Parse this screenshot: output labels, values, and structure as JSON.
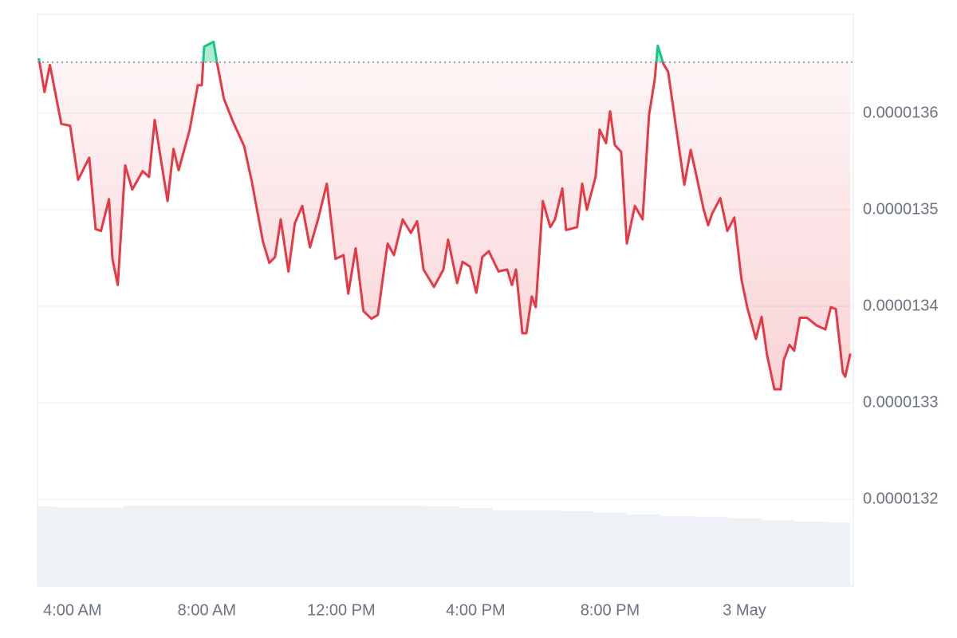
{
  "chart_data": {
    "type": "line",
    "x": [
      3.0,
      3.17,
      3.33,
      3.67,
      3.93,
      4.17,
      4.5,
      4.69,
      4.85,
      5.09,
      5.19,
      5.35,
      5.57,
      5.78,
      6.09,
      6.28,
      6.45,
      6.66,
      6.83,
      7.01,
      7.16,
      7.49,
      7.73,
      7.85,
      7.92,
      8.2,
      8.3,
      8.51,
      8.77,
      9.11,
      9.34,
      9.67,
      9.86,
      10.03,
      10.2,
      10.43,
      10.62,
      10.84,
      11.07,
      11.31,
      11.57,
      11.83,
      12.07,
      12.21,
      12.43,
      12.66,
      12.9,
      13.09,
      13.38,
      13.57,
      13.83,
      14.07,
      14.26,
      14.45,
      14.76,
      15.04,
      15.18,
      15.45,
      15.61,
      15.83,
      16.02,
      16.2,
      16.39,
      16.68,
      16.94,
      17.08,
      17.2,
      17.39,
      17.51,
      17.67,
      17.79,
      18.0,
      18.22,
      18.36,
      18.58,
      18.69,
      19.02,
      19.17,
      19.31,
      19.57,
      19.69,
      19.88,
      20.0,
      20.14,
      20.33,
      20.5,
      20.74,
      20.97,
      21.16,
      21.33,
      21.42,
      21.59,
      21.73,
      21.95,
      22.21,
      22.4,
      22.54,
      22.78,
      22.92,
      23.04,
      23.28,
      23.49,
      23.7,
      23.91,
      24.08,
      24.34,
      24.51,
      24.67,
      24.89,
      25.08,
      25.17,
      25.34,
      25.48,
      25.65,
      25.86,
      26.15,
      26.41,
      26.57,
      26.72,
      26.93,
      27.0,
      27.15
    ],
    "series": [
      {
        "color": "#e63946",
        "values": [
          1.3657e-05,
          1.3622e-05,
          1.365e-05,
          1.3589e-05,
          1.3587e-05,
          1.3531e-05,
          1.3554e-05,
          1.348e-05,
          1.3478e-05,
          1.3511e-05,
          1.3449e-05,
          1.3422e-05,
          1.3546e-05,
          1.3521e-05,
          1.354e-05,
          1.3534e-05,
          1.3593e-05,
          1.3546e-05,
          1.3509e-05,
          1.3563e-05,
          1.3541e-05,
          1.3583e-05,
          1.3629e-05,
          1.3629e-05,
          1.3669e-05,
          1.3674e-05,
          1.3653e-05,
          1.3615e-05,
          1.3592e-05,
          1.3566e-05,
          1.3529e-05,
          1.3467e-05,
          1.3445e-05,
          1.3451e-05,
          1.349e-05,
          1.3436e-05,
          1.3486e-05,
          1.3504e-05,
          1.3461e-05,
          1.349e-05,
          1.3527e-05,
          1.3449e-05,
          1.3453e-05,
          1.3413e-05,
          1.346e-05,
          1.3395e-05,
          1.3387e-05,
          1.3391e-05,
          1.3465e-05,
          1.3453e-05,
          1.349e-05,
          1.3476e-05,
          1.3488e-05,
          1.3438e-05,
          1.342e-05,
          1.3438e-05,
          1.3469e-05,
          1.3424e-05,
          1.3446e-05,
          1.3441e-05,
          1.3414e-05,
          1.3451e-05,
          1.3457e-05,
          1.3436e-05,
          1.3438e-05,
          1.3422e-05,
          1.3438e-05,
          1.3372e-05,
          1.3372e-05,
          1.341e-05,
          1.3399e-05,
          1.3509e-05,
          1.3482e-05,
          1.349e-05,
          1.3522e-05,
          1.3479e-05,
          1.3482e-05,
          1.3527e-05,
          1.35e-05,
          1.3534e-05,
          1.3583e-05,
          1.3569e-05,
          1.3602e-05,
          1.3567e-05,
          1.356e-05,
          1.3465e-05,
          1.3504e-05,
          1.349e-05,
          1.3598e-05,
          1.3635e-05,
          1.367e-05,
          1.3651e-05,
          1.3643e-05,
          1.3589e-05,
          1.3526e-05,
          1.3562e-05,
          1.354e-05,
          1.3501e-05,
          1.3484e-05,
          1.3496e-05,
          1.3512e-05,
          1.3478e-05,
          1.3492e-05,
          1.3428e-05,
          1.3399e-05,
          1.3366e-05,
          1.3389e-05,
          1.335e-05,
          1.3314e-05,
          1.3314e-05,
          1.3344e-05,
          1.336e-05,
          1.3354e-05,
          1.3388e-05,
          1.3388e-05,
          1.338e-05,
          1.3376e-05,
          1.3399e-05,
          1.3397e-05,
          1.3331e-05,
          1.3327e-05,
          1.3351e-05
        ]
      }
    ],
    "baseline": 1.36529e-05,
    "above_color": "#16c784",
    "xlim": [
      2.96,
      27.24
    ],
    "xticks": [
      {
        "value": 4,
        "label": "4:00 AM"
      },
      {
        "value": 8,
        "label": "8:00 AM"
      },
      {
        "value": 12,
        "label": "12:00 PM"
      },
      {
        "value": 16,
        "label": "4:00 PM"
      },
      {
        "value": 20,
        "label": "8:00 PM"
      },
      {
        "value": 24,
        "label": "3 May"
      }
    ],
    "ylim": [
      1.31099e-05,
      1.37025e-05
    ],
    "yticks": [
      1.32e-05,
      1.33e-05,
      1.34e-05,
      1.35e-05,
      1.36e-05
    ],
    "grid": true,
    "volume": {
      "color": "#eef1f5",
      "x": [
        3,
        4,
        5,
        6,
        7,
        8,
        9,
        10,
        11,
        12,
        13,
        14,
        15,
        16,
        17,
        18,
        19,
        20,
        21,
        22,
        23,
        24,
        25,
        26,
        27
      ],
      "values": [
        100,
        99,
        99,
        101,
        101,
        101,
        101,
        101,
        101,
        101,
        101,
        101,
        100,
        98,
        95,
        95,
        94,
        92,
        90,
        88,
        87,
        85,
        83,
        81,
        80
      ],
      "ylim": [
        0,
        102
      ]
    }
  }
}
